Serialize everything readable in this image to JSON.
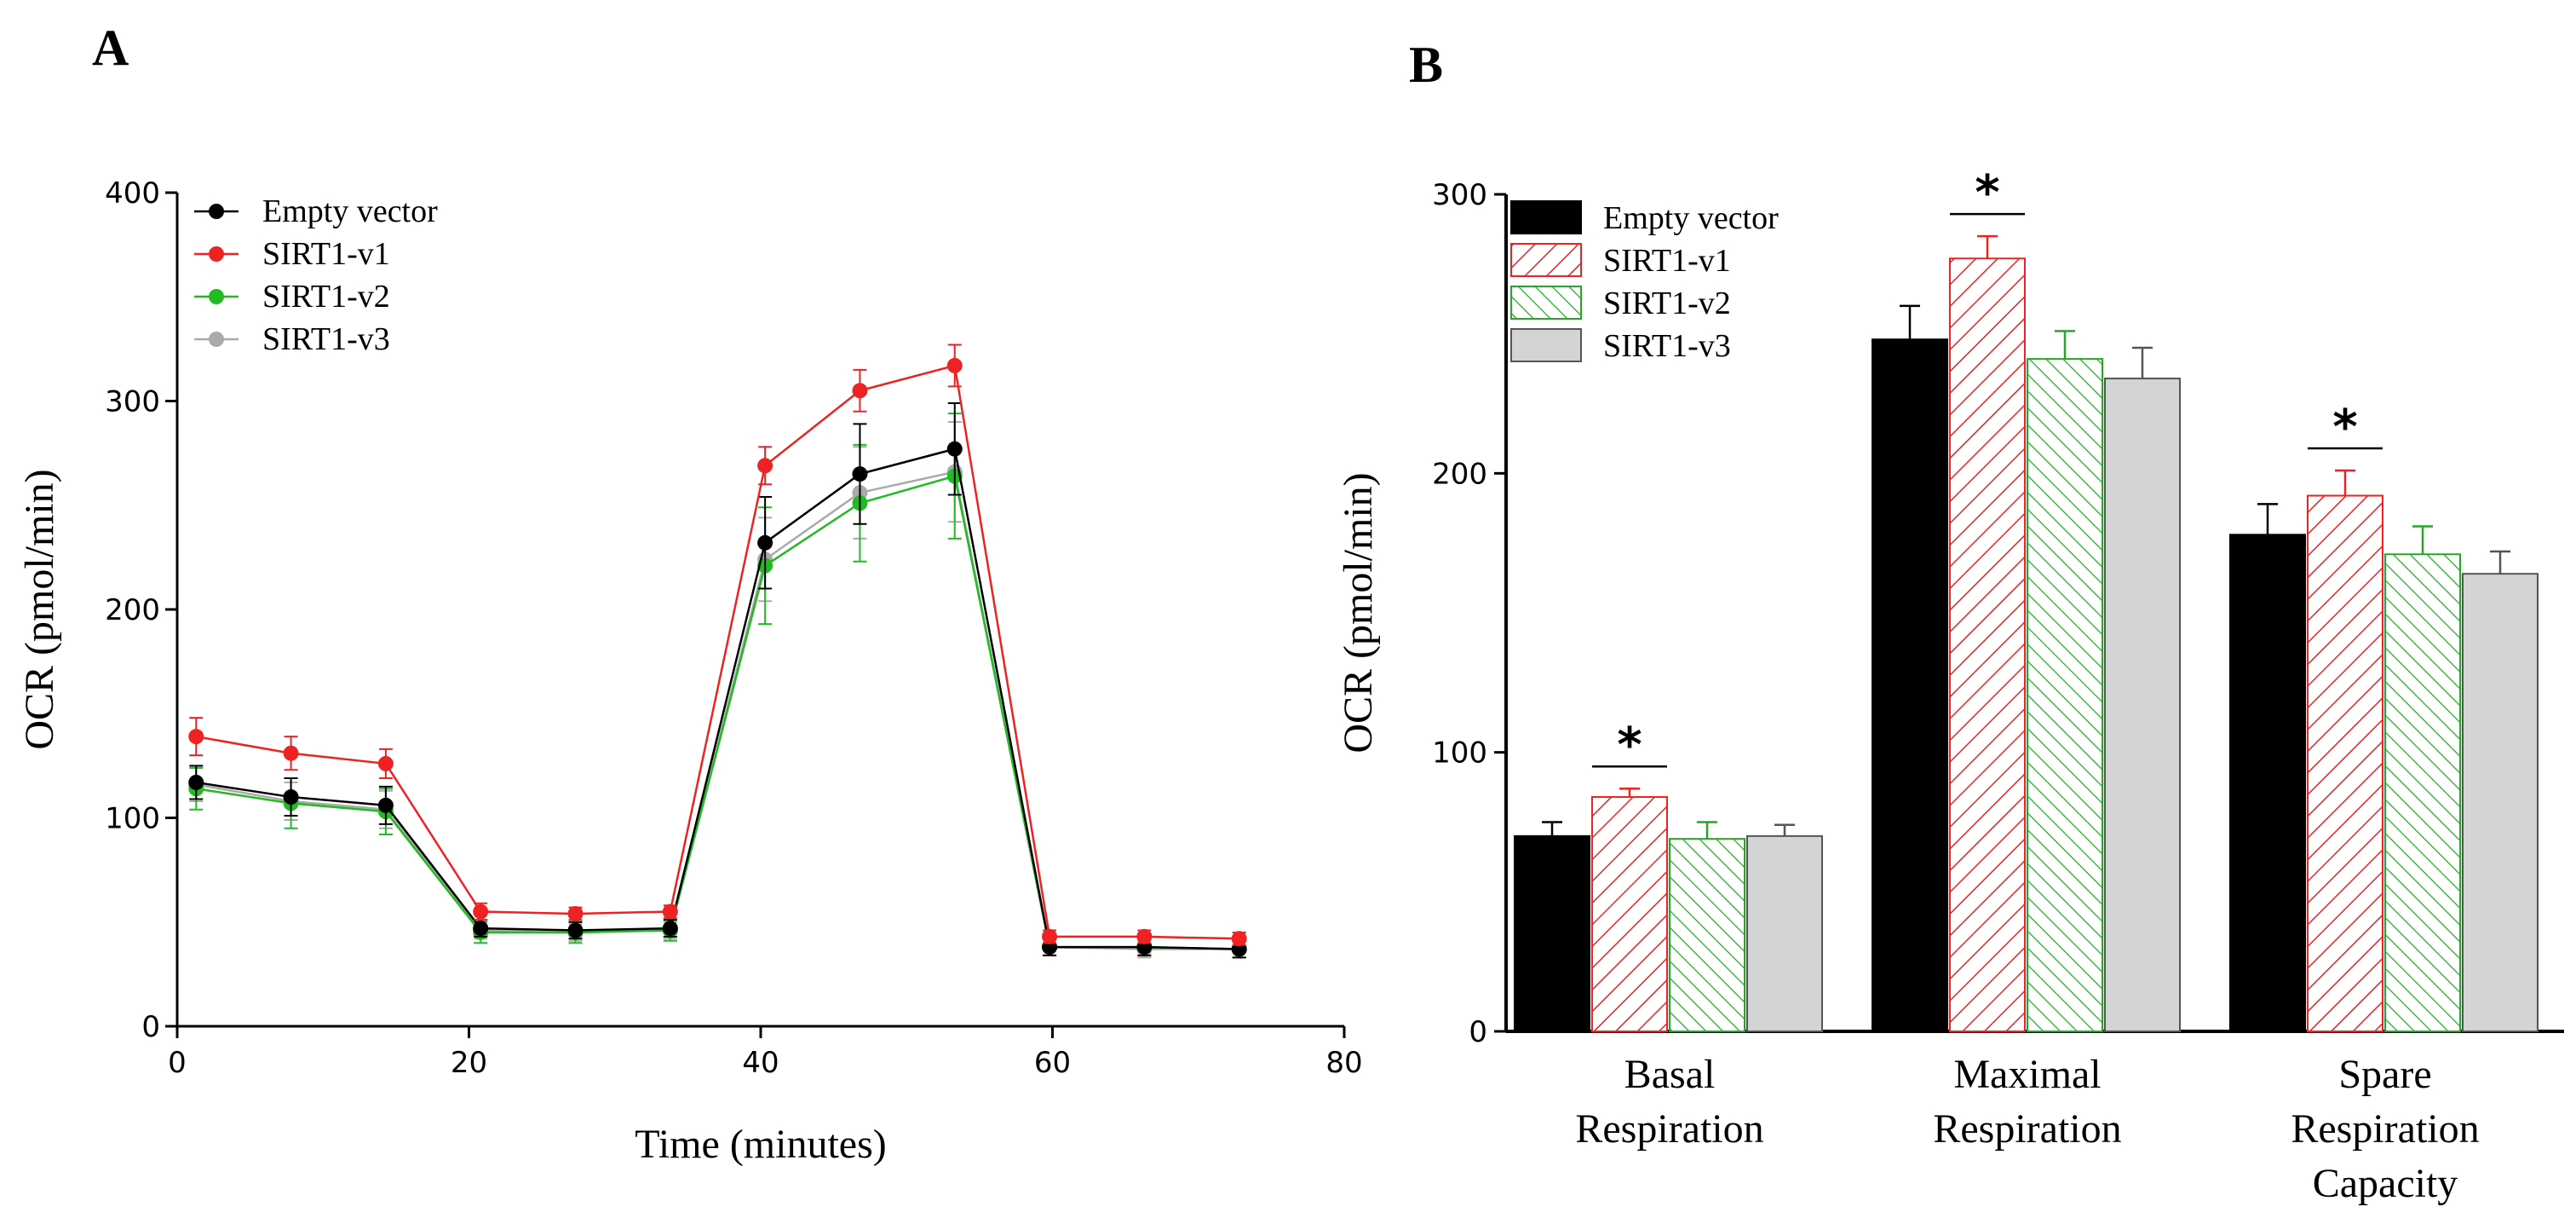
{
  "chart_data": [
    {
      "panel": "A",
      "type": "line",
      "xlabel": "Time (minutes)",
      "ylabel": "OCR (pmol/min)",
      "xlim": [
        0,
        80
      ],
      "ylim": [
        0,
        400
      ],
      "xticks": [
        0,
        20,
        40,
        60,
        80
      ],
      "yticks": [
        0,
        100,
        200,
        300,
        400
      ],
      "x": [
        1.3,
        7.8,
        14.3,
        20.8,
        27.3,
        33.8,
        40.3,
        46.8,
        53.3,
        59.8,
        66.3,
        72.8
      ],
      "series": [
        {
          "name": "Empty vector",
          "color": "#000000",
          "values": [
            117,
            110,
            106,
            47,
            46,
            47,
            232,
            265,
            277,
            38,
            38,
            37
          ],
          "errors": [
            8,
            9,
            9,
            4,
            4,
            4,
            22,
            24,
            22,
            4,
            4,
            4
          ]
        },
        {
          "name": "SIRT1-v1",
          "color": "#ee2222",
          "values": [
            139,
            131,
            126,
            55,
            54,
            55,
            269,
            305,
            317,
            43,
            43,
            42
          ],
          "errors": [
            9,
            8,
            7,
            4,
            3,
            3,
            9,
            10,
            10,
            3,
            3,
            3
          ]
        },
        {
          "name": "SIRT1-v2",
          "color": "#22bb22",
          "values": [
            114,
            107,
            103,
            45,
            45,
            46,
            221,
            251,
            264,
            38,
            38,
            37
          ],
          "errors": [
            10,
            12,
            11,
            5,
            5,
            5,
            28,
            28,
            30,
            4,
            4,
            4
          ]
        },
        {
          "name": "SIRT1-v3",
          "color": "#aaaaaa",
          "values": [
            116,
            108,
            104,
            46,
            45,
            46,
            224,
            256,
            266,
            38,
            37,
            37
          ],
          "errors": [
            8,
            9,
            9,
            4,
            4,
            4,
            20,
            22,
            24,
            4,
            4,
            4
          ]
        }
      ]
    },
    {
      "panel": "B",
      "type": "bar",
      "ylabel": "OCR (pmol/min)",
      "ylim": [
        0,
        300
      ],
      "yticks": [
        0,
        100,
        200,
        300
      ],
      "categories": [
        [
          "Basal",
          "Respiration"
        ],
        [
          "Maximal",
          "Respiration"
        ],
        [
          "Spare",
          "Respiration",
          "Capacity"
        ]
      ],
      "series": [
        {
          "name": "Empty vector",
          "style": "solid-black",
          "values": [
            70,
            248,
            178
          ],
          "errors": [
            5,
            12,
            11
          ]
        },
        {
          "name": "SIRT1-v1",
          "style": "red-hatch",
          "values": [
            84,
            277,
            192
          ],
          "errors": [
            3,
            8,
            9
          ]
        },
        {
          "name": "SIRT1-v2",
          "style": "green-hatch",
          "values": [
            69,
            241,
            171
          ],
          "errors": [
            6,
            10,
            10
          ]
        },
        {
          "name": "SIRT1-v3",
          "style": "solid-gray",
          "values": [
            70,
            234,
            164
          ],
          "errors": [
            4,
            11,
            8
          ]
        }
      ],
      "significance": {
        "label": "*",
        "series": "SIRT1-v1",
        "categories": [
          0,
          1,
          2
        ]
      }
    }
  ]
}
